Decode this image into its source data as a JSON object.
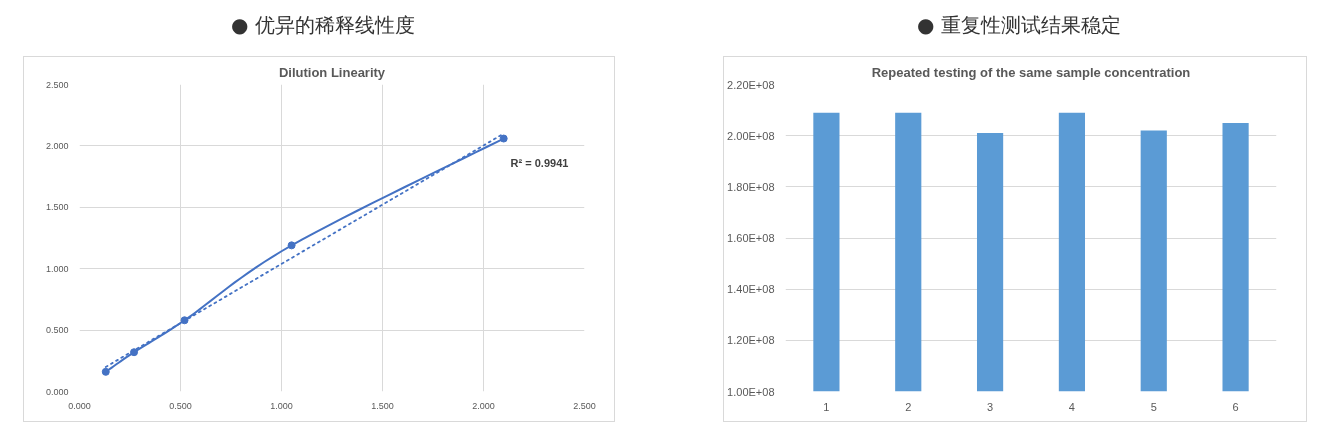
{
  "chart_data": [
    {
      "type": "line",
      "title": "Dilution Linearity",
      "annotations": [
        "●   优异的稀释线性度",
        "R² = 0.9941"
      ],
      "xlim": [
        0,
        2.5
      ],
      "ylim": [
        0,
        2.5
      ],
      "xticks": [
        {
          "value": 0,
          "label": "0.000"
        },
        {
          "value": 0.5,
          "label": "0.500"
        },
        {
          "value": 1,
          "label": "1.000"
        },
        {
          "value": 1.5,
          "label": "1.500"
        },
        {
          "value": 2,
          "label": "2.000"
        },
        {
          "value": 2.5,
          "label": "2.500"
        }
      ],
      "yticks": [
        {
          "value": 0,
          "label": "0.000"
        },
        {
          "value": 0.5,
          "label": "0.500"
        },
        {
          "value": 1,
          "label": "1.000"
        },
        {
          "value": 1.5,
          "label": "1.500"
        },
        {
          "value": 2,
          "label": "2.000"
        },
        {
          "value": 2.5,
          "label": "2.500"
        }
      ],
      "grid": true,
      "series": [
        {
          "color": "#4472c4",
          "x": [
            0.13,
            0.27,
            0.52,
            1.05,
            2.1
          ],
          "values": [
            0.16,
            0.32,
            0.58,
            1.19,
            2.06
          ],
          "marker": "circle",
          "line_style": "solid"
        },
        {
          "color": "#4472c4",
          "x": [
            0.13,
            2.1
          ],
          "values": [
            0.2,
            2.1
          ],
          "marker": "none",
          "line_style": "dotted"
        }
      ]
    },
    {
      "type": "bar",
      "title": "Repeated testing of the same sample concentration",
      "annotations": [
        "●   重复性测试结果稳定"
      ],
      "categories": [
        "1",
        "2",
        "3",
        "4",
        "5",
        "6"
      ],
      "values": [
        209000000,
        209000000,
        201000000,
        209000000,
        202000000,
        205000000
      ],
      "color": "#5b9bd5",
      "ylim": [
        100000000,
        220000000
      ],
      "yticks": [
        {
          "value": 100000000,
          "label": "1.00E+08"
        },
        {
          "value": 120000000,
          "label": "1.20E+08"
        },
        {
          "value": 140000000,
          "label": "1.40E+08"
        },
        {
          "value": 160000000,
          "label": "1.60E+08"
        },
        {
          "value": 180000000,
          "label": "1.80E+08"
        },
        {
          "value": 200000000,
          "label": "2.00E+08"
        },
        {
          "value": 220000000,
          "label": "2.20E+08"
        }
      ],
      "grid": "y"
    }
  ]
}
